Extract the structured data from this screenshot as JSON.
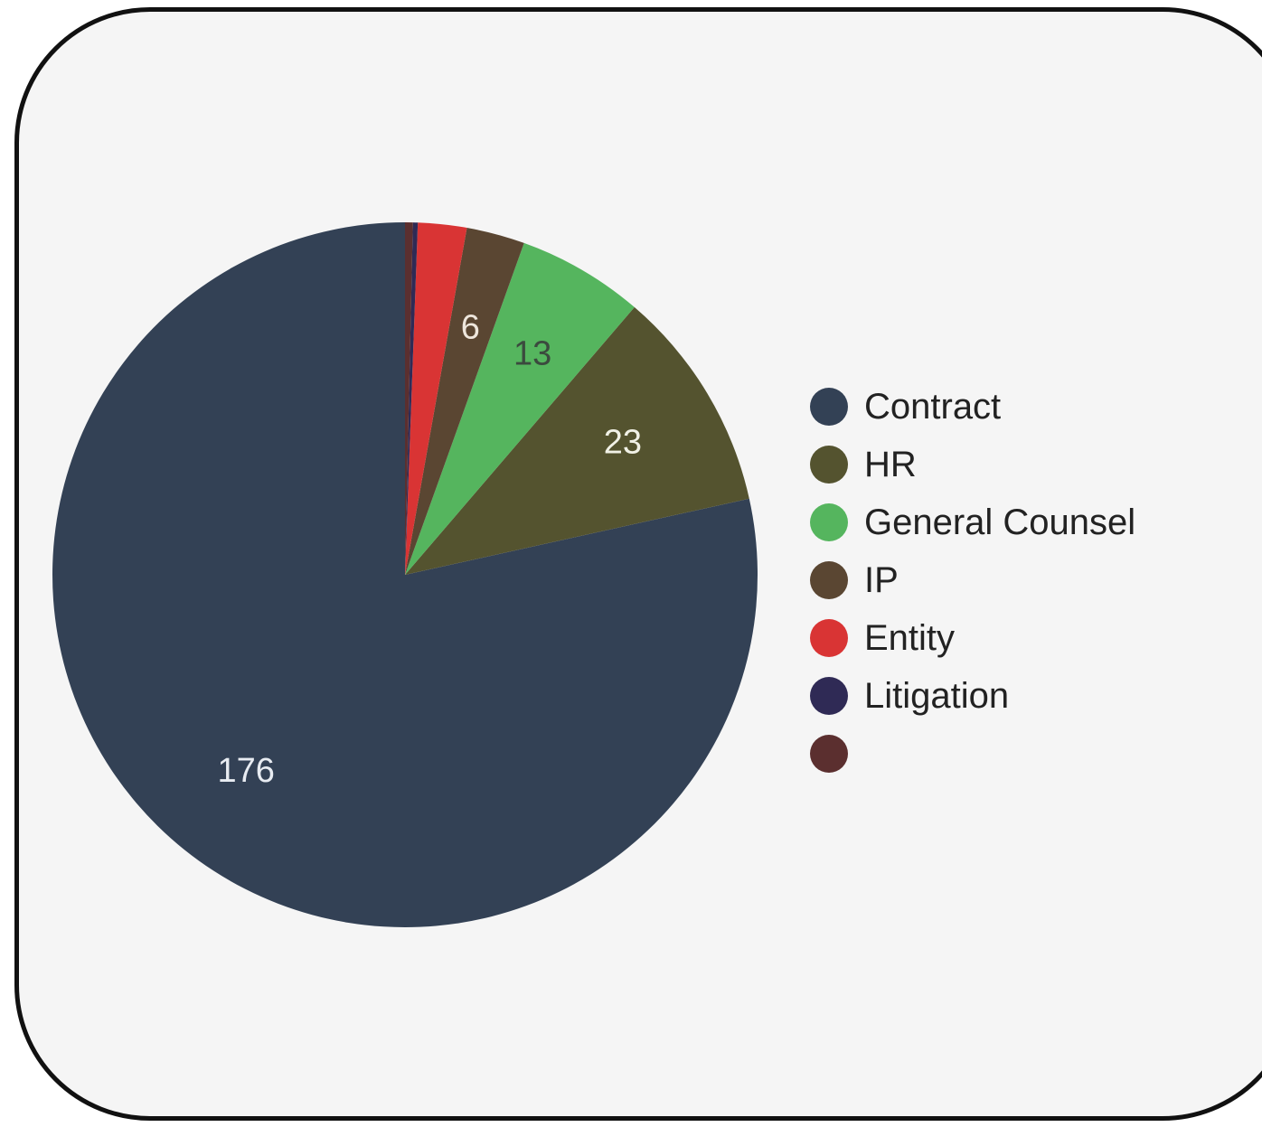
{
  "chart_data": {
    "type": "pie",
    "slices": [
      {
        "label": "Contract",
        "value": 176,
        "display_label": "176",
        "color": "#334155",
        "label_color": "#e8ecf2"
      },
      {
        "label": "HR",
        "value": 23,
        "display_label": "23",
        "color": "#54532f",
        "label_color": "#f1f1e6"
      },
      {
        "label": "General Counsel",
        "value": 13,
        "display_label": "13",
        "color": "#55b55e",
        "label_color": "#3b4a3e"
      },
      {
        "label": "IP",
        "value": 6,
        "display_label": "6",
        "color": "#5a4632",
        "label_color": "#eee6dc"
      },
      {
        "label": "Entity",
        "value": 5,
        "display_label": "",
        "color": "#d93434",
        "label_color": "#ffffff"
      },
      {
        "label": "Litigation",
        "value": 0.5,
        "display_label": "",
        "color": "#2f2a55",
        "label_color": "#ffffff"
      },
      {
        "label": "",
        "value": 0.8,
        "display_label": "",
        "color": "#5b2f2f",
        "label_color": "#ffffff"
      }
    ],
    "legend_position": "right",
    "start_angle": "top",
    "direction": "counterclockwise"
  }
}
